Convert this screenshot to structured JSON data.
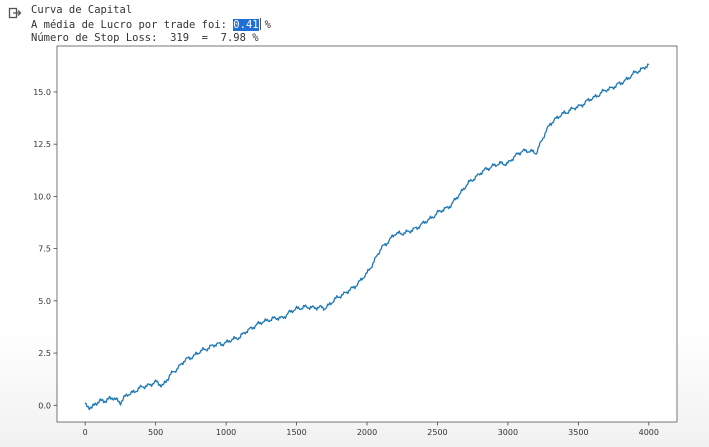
{
  "output": {
    "line1": "Curva de Capital",
    "line2_prefix": "A média de Lucro por trade foi: ",
    "line2_value": "0.41",
    "line2_suffix": "%",
    "line3": "Número de Stop Loss:  319  =  7.98 %"
  },
  "chart_data": {
    "type": "line",
    "title": "",
    "xlabel": "",
    "ylabel": "",
    "xlim": [
      -200,
      4200
    ],
    "ylim": [
      -0.8,
      17.2
    ],
    "xticks": [
      0,
      500,
      1000,
      1500,
      2000,
      2500,
      3000,
      3500,
      4000
    ],
    "yticks": [
      0.0,
      2.5,
      5.0,
      7.5,
      10.0,
      12.5,
      15.0
    ],
    "ytick_labels": [
      "0.0",
      "2.5",
      "5.0",
      "7.5",
      "10.0",
      "12.5",
      "15.0"
    ],
    "grid": false,
    "color": "#1f77b4",
    "series": [
      {
        "x": [
          0,
          50,
          100,
          150,
          200,
          250,
          300,
          400,
          500,
          550,
          600,
          700,
          800,
          900,
          1000,
          1100,
          1200,
          1300,
          1400,
          1500,
          1600,
          1700,
          1800,
          1900,
          2000,
          2100,
          2200,
          2300,
          2400,
          2500,
          2600,
          2700,
          2800,
          2900,
          3000,
          3100,
          3200,
          3300,
          3400,
          3500,
          3600,
          3700,
          3800,
          3900,
          4000
        ],
        "y": [
          0.0,
          -0.1,
          0.2,
          0.25,
          0.35,
          0.15,
          0.5,
          0.85,
          1.1,
          0.95,
          1.4,
          2.1,
          2.5,
          2.85,
          3.0,
          3.3,
          3.8,
          4.1,
          4.2,
          4.65,
          4.7,
          4.65,
          5.2,
          5.6,
          6.3,
          7.5,
          8.2,
          8.3,
          8.7,
          9.2,
          9.6,
          10.5,
          11.1,
          11.5,
          11.6,
          12.2,
          12.1,
          13.5,
          14.0,
          14.3,
          14.7,
          15.1,
          15.4,
          15.9,
          16.3
        ]
      }
    ]
  }
}
